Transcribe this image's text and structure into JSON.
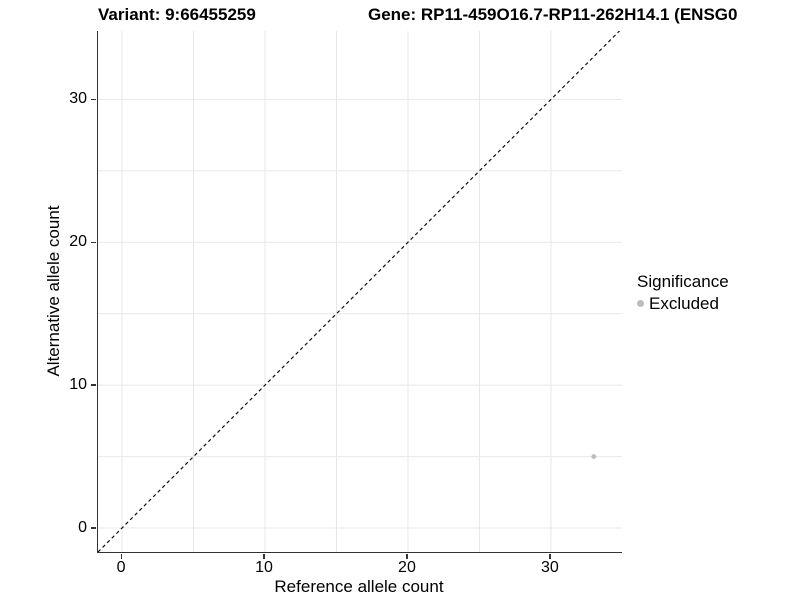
{
  "header": {
    "variant_title": "Variant: 9:66455259",
    "gene_title": "Gene: RP11-459O16.7-RP11-262H14.1 (ENSG0"
  },
  "chart_data": {
    "type": "scatter",
    "title": "Variant: 9:66455259  |  Gene: RP11-459O16.7-RP11-262H14.1 (ENSG0",
    "xlabel": "Reference allele count",
    "ylabel": "Alternative allele count",
    "xlim": [
      -1.68,
      34.97
    ],
    "ylim": [
      -1.68,
      34.79
    ],
    "x_major_ticks": [
      0,
      10,
      20,
      30
    ],
    "y_major_ticks": [
      0,
      10,
      20,
      30
    ],
    "x_minor_ticks": [
      5,
      15,
      25,
      35
    ],
    "y_minor_ticks": [
      5,
      15,
      25,
      35
    ],
    "grid": true,
    "series": [
      {
        "name": "Excluded",
        "color": "#bdbdbd",
        "points": [
          {
            "x": 33,
            "y": 5
          }
        ]
      }
    ],
    "reference_line": {
      "type": "abline",
      "slope": 1,
      "intercept": 0,
      "style": "dashed",
      "color": "#111111"
    },
    "legend": {
      "title": "Significance",
      "position": "right",
      "items": [
        {
          "label": "Excluded",
          "color": "#bdbdbd"
        }
      ]
    }
  },
  "colors": {
    "background": "#ffffff",
    "axis_line": "#333333",
    "grid_line": "#e8e8e8",
    "text": "#000000",
    "excluded_point": "#bdbdbd"
  }
}
